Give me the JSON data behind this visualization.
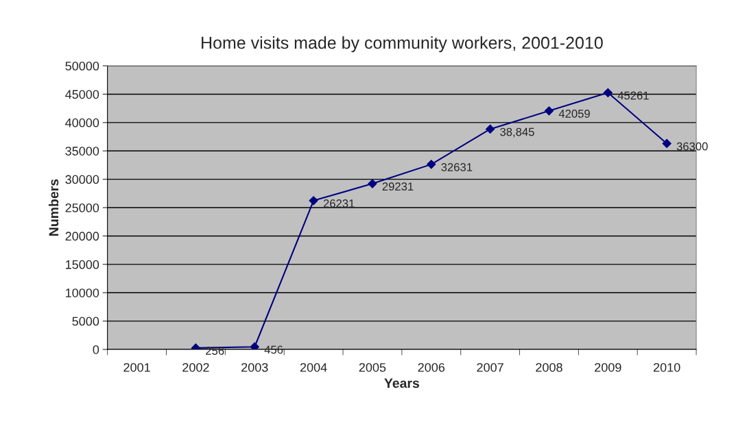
{
  "chart_data": {
    "type": "line",
    "title": "Home visits made by community workers, 2001-2010",
    "xlabel": "Years",
    "ylabel": "Numbers",
    "categories": [
      "2001",
      "2002",
      "2003",
      "2004",
      "2005",
      "2006",
      "2007",
      "2008",
      "2009",
      "2010"
    ],
    "series": [
      {
        "color": "#000080",
        "values": [
          null,
          256,
          456,
          26231,
          29231,
          32631,
          38845,
          42059,
          45261,
          36300
        ],
        "value_labels": [
          null,
          "256",
          "456",
          "26231",
          "29231",
          "32631",
          "38,845",
          "42059",
          "45261",
          "36300"
        ]
      }
    ],
    "ylim": [
      0,
      50000
    ],
    "yticks": [
      0,
      5000,
      10000,
      15000,
      20000,
      25000,
      30000,
      35000,
      40000,
      45000,
      50000
    ],
    "grid": "y",
    "marker": "diamond",
    "line_style": "solid"
  }
}
